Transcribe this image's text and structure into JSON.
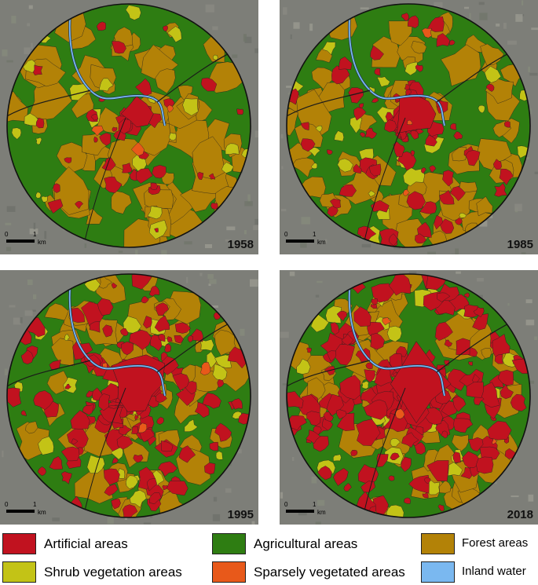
{
  "colors": {
    "artificial": "#c1121f",
    "agricultural": "#2e7d12",
    "forest": "#b38207",
    "shrub": "#c3c316",
    "sparse": "#e8591a",
    "water": "#7ab8f0",
    "background": "#7d7e78"
  },
  "panels": [
    {
      "year": "1958",
      "urban_level": 0.12
    },
    {
      "year": "1985",
      "urban_level": 0.3
    },
    {
      "year": "1995",
      "urban_level": 0.45
    },
    {
      "year": "2018",
      "urban_level": 0.62
    }
  ],
  "scale_bar": {
    "start": "0",
    "end": "1",
    "unit": "km"
  },
  "legend": [
    {
      "label": "Artificial areas",
      "color": "#c1121f"
    },
    {
      "label": "Agricultural areas",
      "color": "#2e7d12"
    },
    {
      "label": "Forest areas",
      "color": "#b38207"
    },
    {
      "label": "Shrub vegetation areas",
      "color": "#c3c316"
    },
    {
      "label": "Sparsely vegetated areas",
      "color": "#e8591a"
    },
    {
      "label": "Inland water",
      "color": "#7ab8f0"
    }
  ]
}
